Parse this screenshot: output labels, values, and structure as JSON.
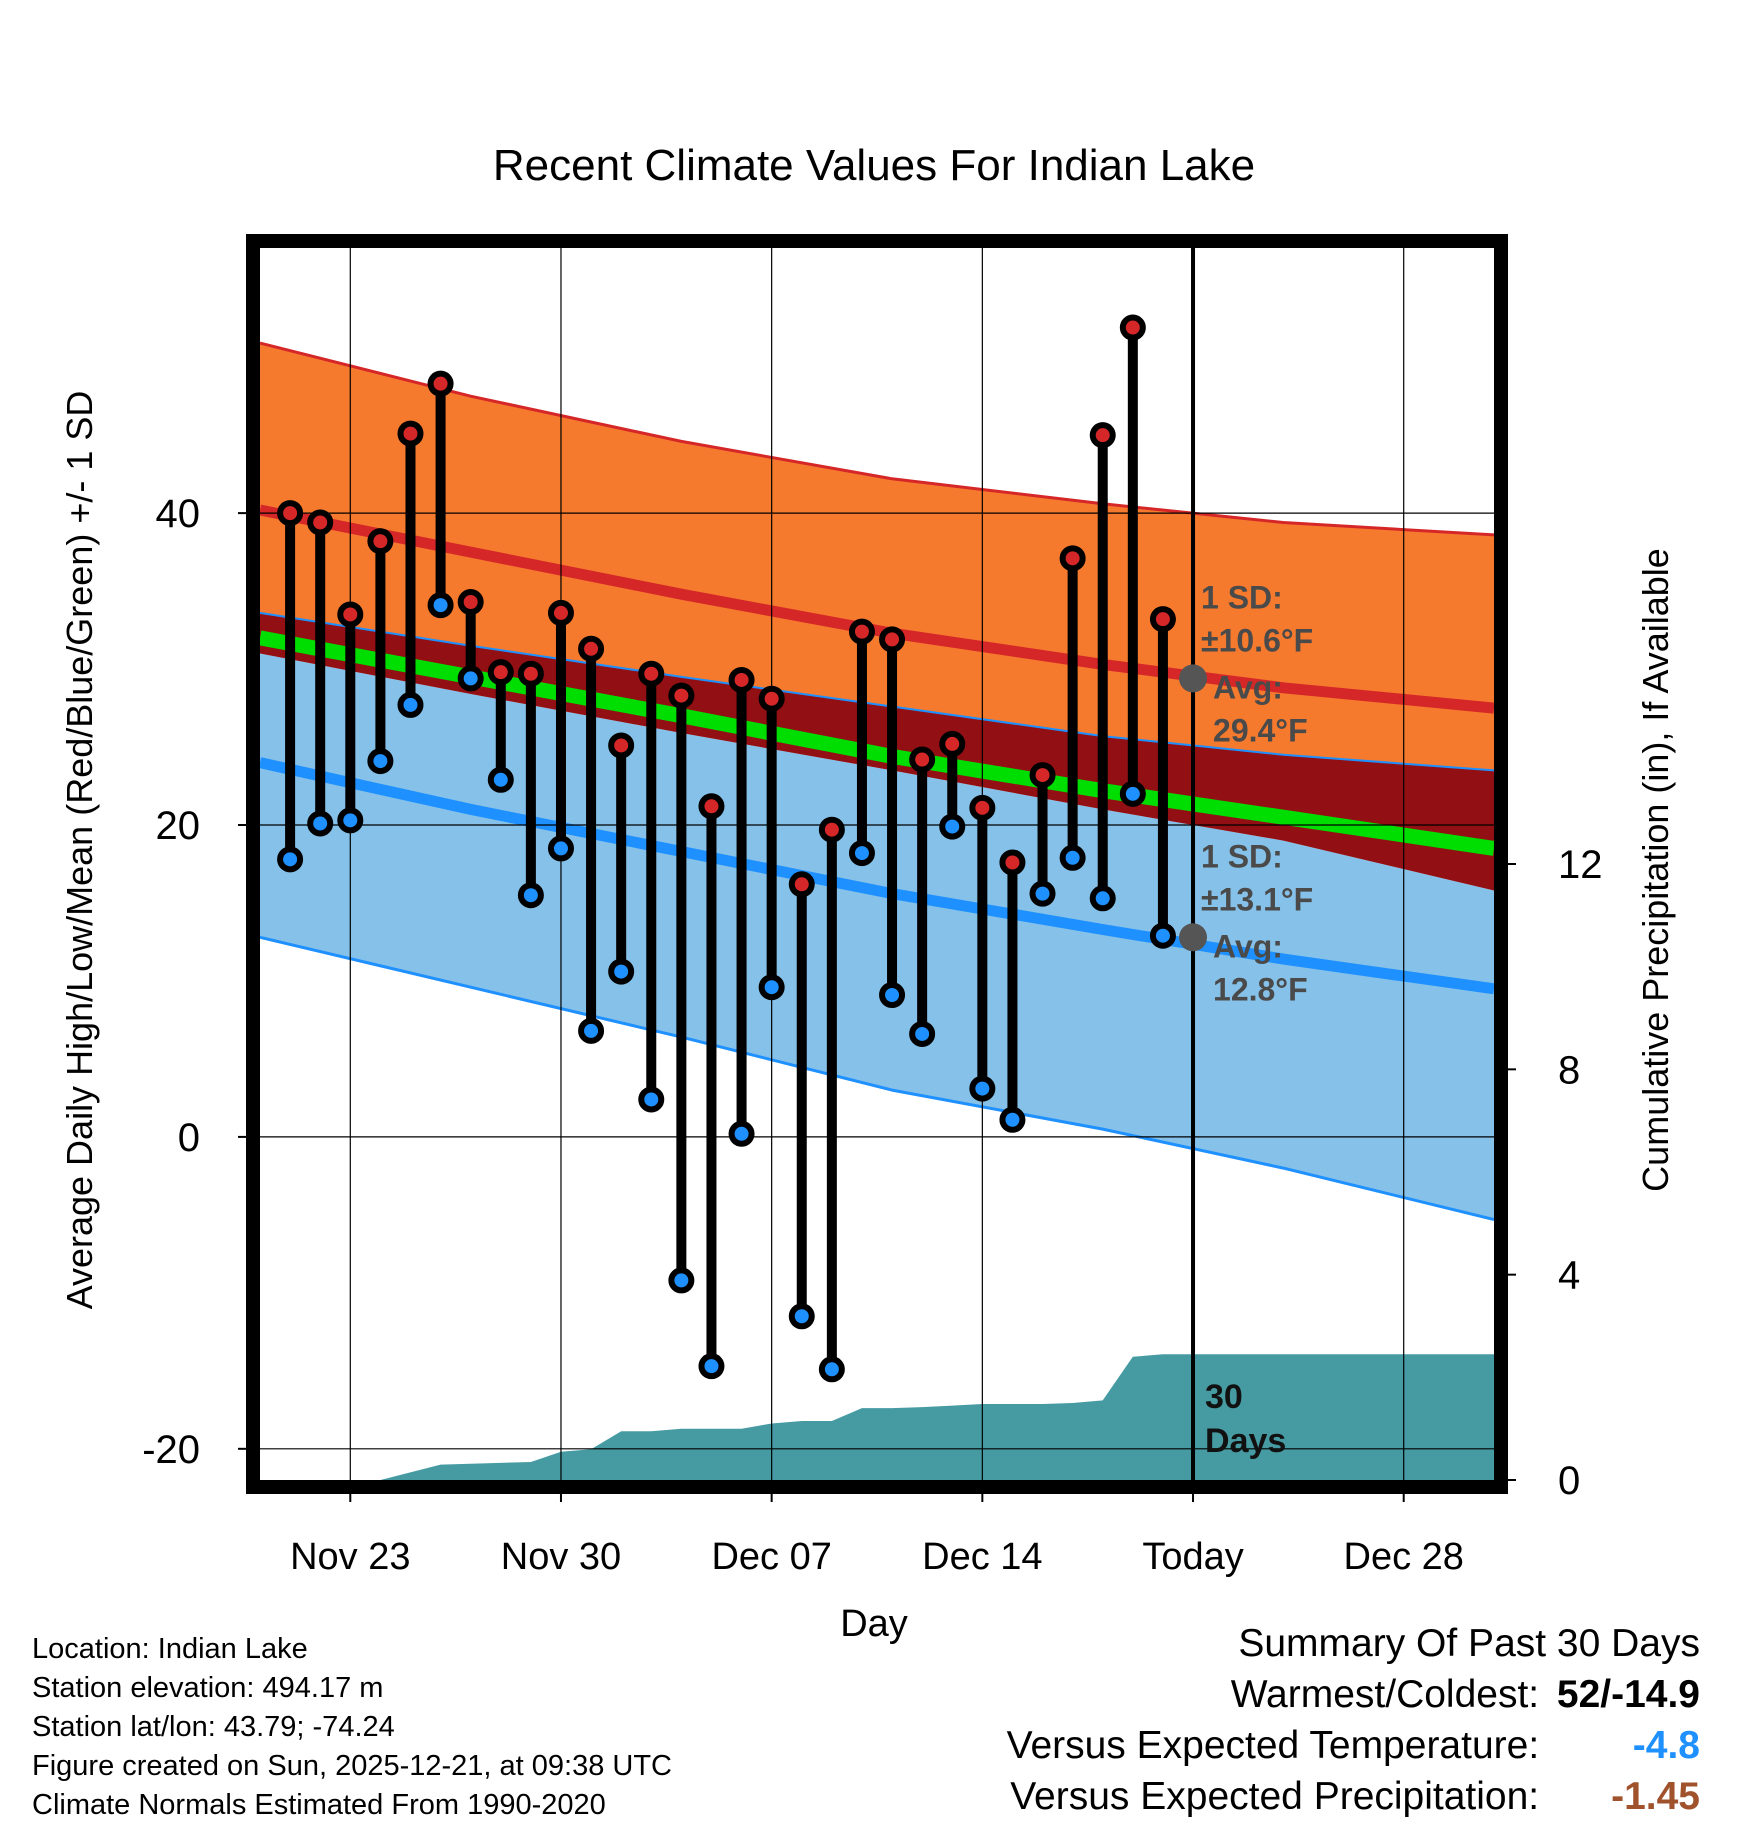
{
  "chart_data": {
    "type": "line",
    "title": "Recent Climate Values For Indian Lake",
    "xlabel": "Day",
    "ylabel": "Average Daily High/Low/Mean (Red/Blue/Green) +/- 1 SD",
    "y2label": "Cumulative Precipitation (in), If Available",
    "x_range_days": [
      -31,
      10
    ],
    "ylim": [
      -22,
      57
    ],
    "y_ticks": [
      -20,
      0,
      20,
      40
    ],
    "y2lim": [
      0,
      24
    ],
    "y2_ticks": [
      0,
      4,
      8,
      12
    ],
    "x_ticks": [
      {
        "day": -28,
        "label": "Nov 23"
      },
      {
        "day": -21,
        "label": "Nov 30"
      },
      {
        "day": -14,
        "label": "Dec 07"
      },
      {
        "day": -7,
        "label": "Dec 14"
      },
      {
        "day": 0,
        "label": "Today"
      },
      {
        "day": 7,
        "label": "Dec 28"
      }
    ],
    "normals": {
      "day": [
        -31,
        -24,
        -17,
        -10,
        -3,
        3,
        10
      ],
      "high_upper": [
        50.9,
        47.5,
        44.6,
        42.2,
        40.6,
        39.4,
        38.6
      ],
      "high_mean": [
        40.2,
        37.5,
        34.8,
        32.3,
        30.3,
        28.8,
        27.5
      ],
      "high_lower": [
        33.6,
        31.5,
        29.5,
        27.6,
        25.7,
        24.5,
        23.5
      ],
      "mean": [
        32.0,
        29.5,
        27.0,
        24.4,
        22.2,
        20.5,
        18.5
      ],
      "low_upper": [
        31.0,
        28.4,
        25.9,
        23.5,
        21.0,
        19.0,
        15.8
      ],
      "low_mean": [
        24.0,
        21.0,
        18.3,
        15.6,
        13.3,
        11.4,
        9.5
      ],
      "low_lower": [
        12.8,
        9.6,
        6.4,
        3.0,
        0.5,
        -2.0,
        -5.3
      ]
    },
    "series": [
      {
        "name": "Daily High",
        "color": "#d62728",
        "day": [
          -30,
          -29,
          -28,
          -27,
          -26,
          -25,
          -24,
          -23,
          -22,
          -21,
          -20,
          -19,
          -18,
          -17,
          -16,
          -15,
          -14,
          -13,
          -12,
          -11,
          -10,
          -9,
          -8,
          -7,
          -6,
          -5,
          -4,
          -3,
          -2,
          -1
        ],
        "values": [
          40,
          39.4,
          33.5,
          38.2,
          45.1,
          48.3,
          34.3,
          29.8,
          29.7,
          33.6,
          31.3,
          25.1,
          29.7,
          28.3,
          21.2,
          29.3,
          28.1,
          16.2,
          19.7,
          32.4,
          31.9,
          24.2,
          25.2,
          21.1,
          17.6,
          23.2,
          37.1,
          45,
          51.9,
          33.2
        ]
      },
      {
        "name": "Daily Low",
        "color": "#1e90ff",
        "day": [
          -30,
          -29,
          -28,
          -27,
          -26,
          -25,
          -24,
          -23,
          -22,
          -21,
          -20,
          -19,
          -18,
          -17,
          -16,
          -15,
          -14,
          -13,
          -12,
          -11,
          -10,
          -9,
          -8,
          -7,
          -6,
          -5,
          -4,
          -3,
          -2,
          -1
        ],
        "values": [
          17.8,
          20.1,
          20.3,
          24.1,
          27.7,
          34.1,
          29.4,
          22.9,
          15.5,
          18.5,
          6.8,
          10.6,
          2.4,
          -9.2,
          -14.7,
          0.2,
          9.6,
          -11.5,
          -14.9,
          18.2,
          9.1,
          6.6,
          19.9,
          3.1,
          1.1,
          15.6,
          17.9,
          15.3,
          22,
          12.9
        ]
      },
      {
        "name": "Cumulative Precipitation",
        "color": "#469ba3",
        "day": [
          -27,
          -25,
          -22,
          -21,
          -20,
          -19,
          -18,
          -17,
          -16,
          -15,
          -14,
          -13,
          -12,
          -11,
          -10,
          -9,
          -8,
          -7,
          -6,
          -5,
          -4,
          -3,
          -2,
          -1,
          0,
          10
        ],
        "values": [
          0,
          0.3,
          0.35,
          0.55,
          0.6,
          0.95,
          0.95,
          1.0,
          1.0,
          1.0,
          1.1,
          1.15,
          1.15,
          1.4,
          1.4,
          1.42,
          1.45,
          1.48,
          1.48,
          1.48,
          1.5,
          1.55,
          2.4,
          2.45,
          2.45,
          2.45
        ]
      }
    ],
    "annotations": {
      "high_sd_label": "1 SD:",
      "high_sd_value": "±10.6°F",
      "high_avg_label": "Avg:",
      "high_avg_value": "29.4°F",
      "high_avg": 29.4,
      "low_sd_label": "1 SD:",
      "low_sd_value": "±13.1°F",
      "low_avg_label": "Avg:",
      "low_avg_value": "12.8°F",
      "low_avg": 12.8,
      "period_label_1": "30",
      "period_label_2": "Days"
    },
    "colors": {
      "high_band": "#f57a2e",
      "high_line": "#d62728",
      "overlap_band": "#920f13",
      "mean_line": "#00dd00",
      "low_band": "#85c1e8",
      "low_line": "#1e90ff",
      "precip": "#469ba3"
    }
  },
  "info": {
    "location": "Location: Indian Lake",
    "elevation": "Station elevation: 494.17 m",
    "latlon": "Station lat/lon: 43.79; -74.24",
    "created": "Figure created on Sun, 2025-12-21, at 09:38 UTC",
    "normals": "Climate Normals Estimated From 1990-2020"
  },
  "summary": {
    "title": "Summary Of Past 30 Days",
    "warmest_label": "Warmest/Coldest:",
    "warmest_value": "52/-14.9",
    "temp_label": "Versus Expected Temperature:",
    "temp_value": "-4.8",
    "temp_color": "#1e90ff",
    "precip_label": "Versus Expected Precipitation:",
    "precip_value": "-1.45",
    "precip_color": "#a0522d"
  }
}
